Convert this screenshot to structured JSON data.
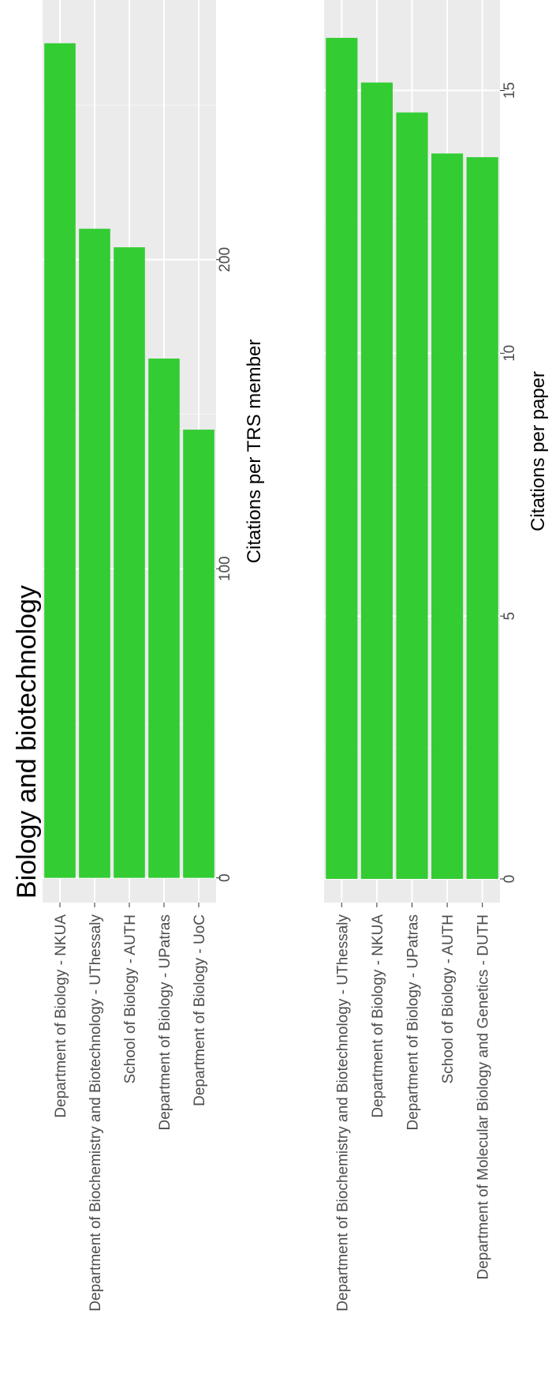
{
  "title": "Biology and biotechnology",
  "colors": {
    "bar": "#33CC33",
    "panel_bg": "#EBEBEB",
    "grid_major": "#FFFFFF",
    "grid_minor": "#F5F5F5",
    "tick_text": "#4D4D4D",
    "axis_title": "#000000"
  },
  "chart_data": [
    {
      "type": "bar",
      "orientation": "horizontal",
      "categories": [
        "Department of Biology - NKUA",
        "Department of Biochemistry and Biotechnology - UThessaly",
        "School of Biology - AUTH",
        "Department of Biology - UPatras",
        "Department of Biology - UoC"
      ],
      "values": [
        270,
        210,
        204,
        168,
        145
      ],
      "xlabel": "",
      "ylabel": "Citations per TRS member",
      "ylim": [
        -8,
        284
      ],
      "ticks": [
        0,
        100,
        200
      ],
      "tick_labels": [
        "0",
        "100",
        "200"
      ],
      "minor_ticks": [
        50,
        150,
        250
      ],
      "grid": true
    },
    {
      "type": "bar",
      "orientation": "horizontal",
      "categories": [
        "Department of Biochemistry and Biotechnology - UThessaly",
        "Department of Biology - NKUA",
        "Department of Biology - UPatras",
        "School of Biology - AUTH",
        "Department of Molecular Biology and Genetics - DUTH"
      ],
      "values": [
        16.0,
        15.15,
        14.58,
        13.8,
        13.73
      ],
      "xlabel": "",
      "ylabel": "Citations per paper",
      "ylim": [
        -0.45,
        16.72
      ],
      "ticks": [
        0,
        5,
        10,
        15
      ],
      "tick_labels": [
        "0",
        "5",
        "10",
        "15"
      ],
      "minor_ticks": [
        2.5,
        7.5,
        12.5
      ],
      "grid": true
    }
  ]
}
